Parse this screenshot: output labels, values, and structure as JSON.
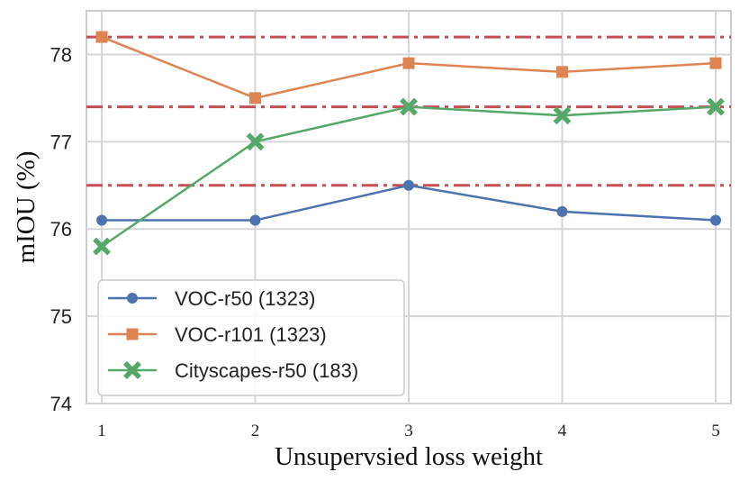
{
  "chart_data": {
    "type": "line",
    "title": "",
    "xlabel": "Unsupervsied loss weight",
    "ylabel": "mIOU (%)",
    "x": [
      1,
      2,
      3,
      4,
      5
    ],
    "xlim": [
      0.9,
      5.1
    ],
    "ylim": [
      74,
      78.5
    ],
    "x_ticks": [
      "1",
      "2",
      "3",
      "4",
      "5"
    ],
    "y_ticks": [
      "74",
      "75",
      "76",
      "77",
      "78"
    ],
    "grid": true,
    "legend_position": "lower-left",
    "series": [
      {
        "name": "VOC-r50 (1323)",
        "values": [
          76.1,
          76.1,
          76.5,
          76.2,
          76.1
        ],
        "color": "#4c72b0",
        "marker": "circle"
      },
      {
        "name": "VOC-r101 (1323)",
        "values": [
          78.2,
          77.5,
          77.9,
          77.8,
          77.9
        ],
        "color": "#dd8452",
        "marker": "square"
      },
      {
        "name": "Cityscapes-r50 (183)",
        "values": [
          75.8,
          77.0,
          77.4,
          77.3,
          77.4
        ],
        "color": "#55a868",
        "marker": "x"
      }
    ],
    "reference_lines": {
      "values": [
        78.2,
        77.4,
        76.5
      ],
      "color": "#c44e52",
      "style": "dash-dot"
    }
  }
}
